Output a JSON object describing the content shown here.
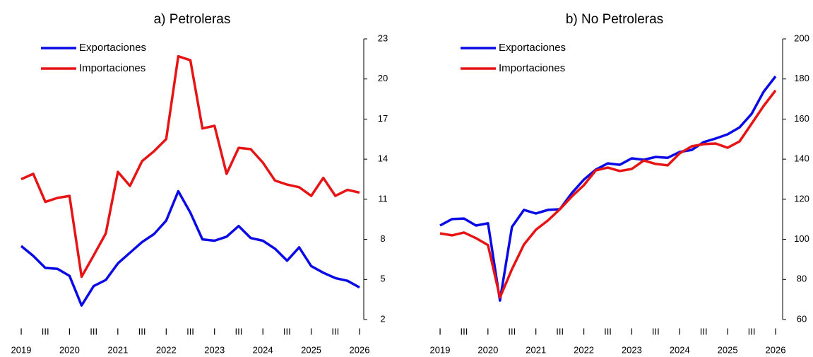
{
  "chart_data": [
    {
      "type": "line",
      "title": "a) Petroleras",
      "categories": [
        "I",
        null,
        "III",
        null,
        "I",
        null,
        "III",
        null,
        "I",
        null,
        "III",
        null,
        "I",
        null,
        "III",
        null,
        "I",
        null,
        "III",
        null,
        "I",
        null,
        "III",
        null,
        "I",
        null,
        "III",
        null,
        "I"
      ],
      "year_labels": [
        "2019",
        "2020",
        "2021",
        "2022",
        "2023",
        "2024",
        "2025",
        "2026"
      ],
      "ylim": [
        2,
        23
      ],
      "yticks": [
        2,
        5,
        8,
        11,
        14,
        17,
        20,
        23
      ],
      "y_axis_side": "right",
      "series": [
        {
          "name": "Exportaciones",
          "color": "#0a0ae6",
          "values": [
            7.5,
            6.76,
            5.86,
            5.8,
            5.27,
            3.05,
            4.5,
            4.96,
            6.2,
            7.0,
            7.8,
            8.4,
            9.4,
            11.6,
            10.0,
            8.0,
            7.9,
            8.2,
            9.0,
            8.1,
            7.9,
            7.3,
            6.4,
            7.4,
            6.0,
            5.5,
            5.1,
            4.9,
            4.4
          ]
        },
        {
          "name": "Importaciones",
          "color": "#e61414",
          "values": [
            12.5,
            12.9,
            10.8,
            11.1,
            11.25,
            5.2,
            6.8,
            8.45,
            13.05,
            12.0,
            13.85,
            14.6,
            15.5,
            21.7,
            21.4,
            16.3,
            16.5,
            12.9,
            14.85,
            14.75,
            13.75,
            12.4,
            12.1,
            11.9,
            11.25,
            12.6,
            11.25,
            11.7,
            11.5
          ]
        }
      ]
    },
    {
      "type": "line",
      "title": "b) No Petroleras",
      "categories": [
        "I",
        null,
        "III",
        null,
        "I",
        null,
        "III",
        null,
        "I",
        null,
        "III",
        null,
        "I",
        null,
        "III",
        null,
        "I",
        null,
        "III",
        null,
        "I",
        null,
        "III",
        null,
        "I",
        null,
        "III",
        null,
        "I"
      ],
      "year_labels": [
        "2019",
        "2020",
        "2021",
        "2022",
        "2023",
        "2024",
        "2025",
        "2026"
      ],
      "ylim": [
        60,
        200
      ],
      "yticks": [
        60,
        80,
        100,
        120,
        140,
        160,
        180,
        200
      ],
      "y_axis_side": "right",
      "series": [
        {
          "name": "Exportaciones",
          "color": "#0a0ae6",
          "values": [
            106.9,
            110.1,
            110.4,
            106.9,
            108,
            69.5,
            106.2,
            114.7,
            112.9,
            114.7,
            115,
            123.1,
            129.8,
            134.8,
            137.9,
            137.2,
            140.4,
            139.7,
            141.1,
            140.7,
            143.6,
            144.6,
            148.5,
            150.3,
            152.4,
            155.9,
            162.6,
            173.6,
            181.3
          ]
        },
        {
          "name": "Importaciones",
          "color": "#e61414",
          "values": [
            103,
            102,
            103.4,
            100.6,
            97.1,
            71,
            85.1,
            97.4,
            104.8,
            109.4,
            115,
            121.4,
            127,
            134.4,
            135.8,
            134.1,
            135.1,
            139.3,
            137.6,
            136.9,
            142.9,
            146.4,
            147.5,
            147.8,
            145.7,
            148.9,
            157.7,
            166.5,
            174.3
          ]
        }
      ]
    }
  ]
}
